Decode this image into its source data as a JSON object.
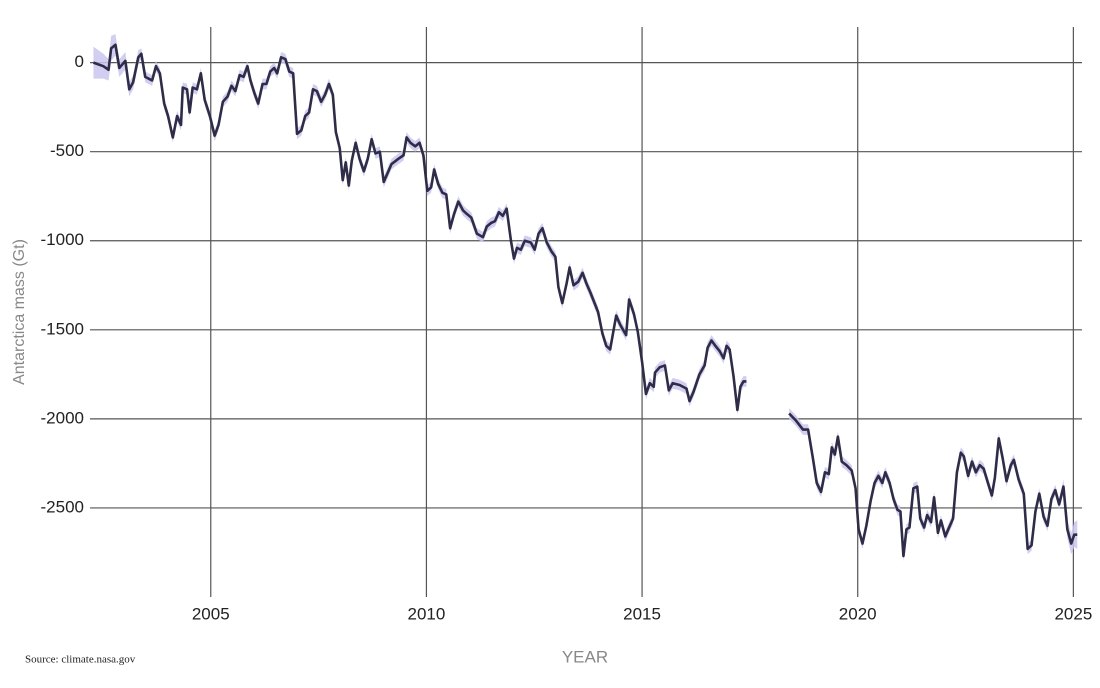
{
  "chart_data": {
    "type": "line",
    "y_label": "Antarctica mass (Gt)",
    "x_label": "YEAR",
    "source": "Source: climate.nasa.gov",
    "xlim": [
      2002.2,
      2025.2
    ],
    "xticks": [
      2005,
      2010,
      2015,
      2020,
      2025
    ],
    "ylim": [
      -3000,
      200
    ],
    "yticks": [
      0,
      -500,
      -1000,
      -1500,
      -2000,
      -2500
    ],
    "grid": true,
    "x": [
      2002.28,
      2002.51,
      2002.63,
      2002.69,
      2002.79,
      2002.88,
      2003.02,
      2003.11,
      2003.2,
      2003.32,
      2003.39,
      2003.48,
      2003.64,
      2003.73,
      2003.82,
      2003.92,
      2004.01,
      2004.12,
      2004.22,
      2004.31,
      2004.35,
      2004.45,
      2004.51,
      2004.58,
      2004.68,
      2004.77,
      2004.86,
      2004.98,
      2005.09,
      2005.18,
      2005.28,
      2005.39,
      2005.48,
      2005.57,
      2005.67,
      2005.76,
      2005.85,
      2005.92,
      2006.01,
      2006.1,
      2006.2,
      2006.29,
      2006.38,
      2006.47,
      2006.54,
      2006.63,
      2006.73,
      2006.82,
      2006.91,
      2007.0,
      2007.1,
      2007.19,
      2007.28,
      2007.37,
      2007.46,
      2007.56,
      2007.65,
      2007.74,
      2007.83,
      2007.9,
      2007.99,
      2008.06,
      2008.13,
      2008.2,
      2008.27,
      2008.36,
      2008.45,
      2008.55,
      2008.64,
      2008.73,
      2008.82,
      2008.92,
      2009.01,
      2009.1,
      2009.19,
      2009.35,
      2009.47,
      2009.54,
      2009.63,
      2009.74,
      2009.84,
      2009.93,
      2010.02,
      2010.11,
      2010.18,
      2010.27,
      2010.37,
      2010.46,
      2010.55,
      2010.64,
      2010.74,
      2010.85,
      2010.94,
      2011.04,
      2011.17,
      2011.31,
      2011.4,
      2011.5,
      2011.59,
      2011.68,
      2011.77,
      2011.86,
      2011.96,
      2012.03,
      2012.1,
      2012.19,
      2012.28,
      2012.42,
      2012.51,
      2012.6,
      2012.69,
      2012.79,
      2012.9,
      2012.99,
      2013.06,
      2013.15,
      2013.25,
      2013.32,
      2013.41,
      2013.52,
      2013.62,
      2013.71,
      2013.8,
      2013.98,
      2014.08,
      2014.17,
      2014.26,
      2014.4,
      2014.49,
      2014.63,
      2014.7,
      2014.81,
      2014.9,
      2015.0,
      2015.09,
      2015.18,
      2015.27,
      2015.3,
      2015.41,
      2015.53,
      2015.62,
      2015.71,
      2015.87,
      2016.03,
      2016.1,
      2016.19,
      2016.33,
      2016.45,
      2016.52,
      2016.61,
      2016.7,
      2016.8,
      2016.89,
      2016.96,
      2017.03,
      2017.12,
      2017.21,
      2017.28,
      2017.35,
      2017.42,
      2017.95,
      2018.41,
      2018.57,
      2018.73,
      2018.85,
      2018.96,
      2019.05,
      2019.15,
      2019.24,
      2019.33,
      2019.4,
      2019.47,
      2019.54,
      2019.63,
      2019.74,
      2019.86,
      2019.95,
      2020.02,
      2020.11,
      2020.2,
      2020.3,
      2020.39,
      2020.48,
      2020.57,
      2020.64,
      2020.74,
      2020.83,
      2020.92,
      2020.99,
      2021.06,
      2021.13,
      2021.2,
      2021.29,
      2021.38,
      2021.45,
      2021.54,
      2021.61,
      2021.7,
      2021.77,
      2021.86,
      2021.93,
      2022.03,
      2022.1,
      2022.21,
      2022.3,
      2022.39,
      2022.46,
      2022.56,
      2022.65,
      2022.74,
      2022.83,
      2022.92,
      2023.02,
      2023.11,
      2023.18,
      2023.27,
      2023.36,
      2023.45,
      2023.55,
      2023.62,
      2023.73,
      2023.85,
      2023.94,
      2024.03,
      2024.12,
      2024.21,
      2024.31,
      2024.4,
      2024.49,
      2024.58,
      2024.67,
      2024.77,
      2024.86,
      2024.95,
      2025.02,
      2025.09
    ],
    "series": [
      {
        "color": "#2e2c47",
        "band_color": "#c9c6ee",
        "values": [
          0,
          -20,
          -40,
          80,
          100,
          -30,
          10,
          -150,
          -110,
          30,
          50,
          -80,
          -100,
          -20,
          -60,
          -230,
          -300,
          -420,
          -300,
          -350,
          -140,
          -150,
          -280,
          -140,
          -150,
          -60,
          -210,
          -300,
          -410,
          -350,
          -220,
          -190,
          -130,
          -160,
          -70,
          -80,
          -20,
          -100,
          -170,
          -230,
          -120,
          -120,
          -50,
          -30,
          -60,
          30,
          20,
          -50,
          -60,
          -400,
          -380,
          -300,
          -280,
          -150,
          -160,
          -220,
          -180,
          -120,
          -180,
          -390,
          -480,
          -660,
          -560,
          -690,
          -550,
          -450,
          -540,
          -610,
          -540,
          -430,
          -510,
          -500,
          -670,
          -620,
          -570,
          -540,
          -520,
          -420,
          -450,
          -470,
          -450,
          -520,
          -720,
          -700,
          -600,
          -680,
          -730,
          -740,
          -930,
          -850,
          -780,
          -830,
          -850,
          -870,
          -960,
          -980,
          -920,
          -900,
          -890,
          -840,
          -860,
          -820,
          -1000,
          -1100,
          -1040,
          -1050,
          -1000,
          -1010,
          -1050,
          -960,
          -930,
          -1010,
          -1060,
          -1090,
          -1260,
          -1350,
          -1240,
          -1150,
          -1250,
          -1230,
          -1180,
          -1240,
          -1290,
          -1400,
          -1520,
          -1590,
          -1610,
          -1420,
          -1470,
          -1530,
          -1330,
          -1410,
          -1510,
          -1680,
          -1860,
          -1800,
          -1820,
          -1740,
          -1710,
          -1700,
          -1840,
          -1800,
          -1810,
          -1830,
          -1900,
          -1850,
          -1750,
          -1700,
          -1600,
          -1560,
          -1590,
          -1620,
          -1660,
          -1590,
          -1610,
          -1760,
          -1950,
          -1820,
          -1790,
          -1790,
          null,
          -1970,
          -2010,
          -2060,
          -2060,
          -2220,
          -2360,
          -2410,
          -2300,
          -2310,
          -2160,
          -2200,
          -2100,
          -2240,
          -2260,
          -2290,
          -2390,
          -2620,
          -2700,
          -2600,
          -2460,
          -2360,
          -2320,
          -2360,
          -2300,
          -2360,
          -2450,
          -2510,
          -2520,
          -2770,
          -2620,
          -2610,
          -2390,
          -2380,
          -2560,
          -2610,
          -2540,
          -2580,
          -2440,
          -2640,
          -2570,
          -2660,
          -2620,
          -2560,
          -2300,
          -2190,
          -2210,
          -2320,
          -2240,
          -2300,
          -2260,
          -2280,
          -2360,
          -2430,
          -2330,
          -2110,
          -2220,
          -2350,
          -2260,
          -2230,
          -2340,
          -2420,
          -2730,
          -2710,
          -2520,
          -2420,
          -2550,
          -2600,
          -2450,
          -2400,
          -2480,
          -2380,
          -2620,
          -2700,
          -2650,
          -2650
        ],
        "errors": [
          90,
          70,
          60,
          70,
          60,
          50,
          50,
          40,
          40,
          40,
          30,
          30,
          30,
          30,
          30,
          30,
          30,
          30,
          30,
          30,
          30,
          30,
          30,
          30,
          30,
          30,
          30,
          30,
          30,
          30,
          30,
          30,
          30,
          30,
          30,
          30,
          30,
          30,
          30,
          30,
          30,
          30,
          30,
          30,
          30,
          30,
          30,
          30,
          30,
          30,
          30,
          30,
          30,
          30,
          30,
          30,
          30,
          30,
          30,
          30,
          30,
          30,
          30,
          30,
          30,
          30,
          30,
          30,
          30,
          30,
          30,
          30,
          30,
          30,
          30,
          30,
          30,
          30,
          30,
          30,
          30,
          30,
          30,
          30,
          30,
          30,
          30,
          30,
          30,
          30,
          30,
          30,
          30,
          30,
          30,
          30,
          30,
          30,
          30,
          30,
          30,
          30,
          30,
          30,
          30,
          30,
          30,
          30,
          30,
          30,
          30,
          30,
          30,
          30,
          30,
          30,
          30,
          30,
          30,
          30,
          30,
          30,
          30,
          30,
          30,
          30,
          30,
          30,
          30,
          30,
          30,
          30,
          30,
          30,
          30,
          30,
          30,
          30,
          30,
          30,
          30,
          30,
          30,
          30,
          30,
          30,
          30,
          30,
          30,
          30,
          30,
          30,
          30,
          30,
          30,
          30,
          30,
          30,
          30,
          30,
          null,
          30,
          30,
          30,
          30,
          30,
          30,
          30,
          30,
          30,
          30,
          30,
          30,
          30,
          30,
          30,
          30,
          30,
          30,
          30,
          30,
          30,
          30,
          30,
          30,
          30,
          30,
          30,
          30,
          30,
          30,
          30,
          30,
          30,
          30,
          30,
          30,
          30,
          30,
          30,
          30,
          30,
          30,
          30,
          30,
          30,
          30,
          30,
          30,
          30,
          30,
          30,
          30,
          30,
          30,
          30,
          30,
          30,
          30,
          30,
          30,
          30,
          30,
          30,
          30,
          30,
          30,
          30,
          30,
          30,
          30,
          40,
          50,
          60,
          70,
          80
        ]
      }
    ]
  }
}
